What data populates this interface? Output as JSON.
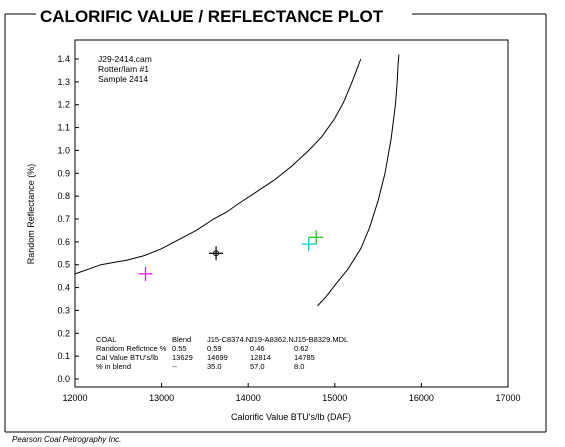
{
  "chart_data": {
    "type": "scatter",
    "title": "CALORIFIC VALUE / REFLECTANCE PLOT",
    "xlabel": "Calorific Value BTU's/lb (DAF)",
    "ylabel": "Random Reflectance (%)",
    "xlim": [
      12000,
      17000
    ],
    "ylim": [
      0.0,
      1.5
    ],
    "xticks": [
      12000,
      13000,
      14000,
      15000,
      16000,
      17000
    ],
    "yticks": [
      0.0,
      0.1,
      0.2,
      0.3,
      0.4,
      0.5,
      0.6,
      0.7,
      0.8,
      0.9,
      1.0,
      1.1,
      1.2,
      1.3,
      1.4
    ],
    "ytick_labels": [
      "0.0",
      "0.1",
      "0.2",
      "0.3",
      "0.4",
      "0.5",
      "0.6",
      "0.7",
      "0.8",
      "0.9",
      "1.0",
      "1.1",
      "1.2",
      "1.3",
      "1.4"
    ],
    "annotation_lines": [
      "J29-2414.cam",
      "Rotter/lam #1",
      "Sample 2414"
    ],
    "footer": "Pearson Coal Petrography Inc.",
    "series": [
      {
        "name": "Blend",
        "color": "#000000",
        "x": [
          13629
        ],
        "y": [
          0.55
        ]
      },
      {
        "name": "J15-C8374.N",
        "color": "#00c8c8",
        "x": [
          14699
        ],
        "y": [
          0.59
        ]
      },
      {
        "name": "J19-A8362.N",
        "color": "#e000e0",
        "x": [
          12814
        ],
        "y": [
          0.46
        ]
      },
      {
        "name": "J15-B8329.MDL",
        "color": "#00c800",
        "x": [
          14785
        ],
        "y": [
          0.62
        ]
      }
    ],
    "curves": [
      {
        "x": [
          12000,
          12150,
          12300,
          12450,
          12600,
          12800,
          13000,
          13200,
          13400,
          13600,
          13750,
          13900,
          14100,
          14300,
          14500,
          14700,
          14850,
          15000,
          15100,
          15200,
          15250,
          15300
        ],
        "y": [
          0.46,
          0.48,
          0.5,
          0.51,
          0.52,
          0.54,
          0.57,
          0.61,
          0.65,
          0.7,
          0.73,
          0.77,
          0.82,
          0.87,
          0.93,
          1.0,
          1.06,
          1.14,
          1.21,
          1.3,
          1.35,
          1.4
        ]
      },
      {
        "x": [
          14800,
          14900,
          15000,
          15150,
          15300,
          15400,
          15500,
          15580,
          15650,
          15700,
          15720,
          15730,
          15740
        ],
        "y": [
          0.32,
          0.36,
          0.41,
          0.48,
          0.57,
          0.66,
          0.78,
          0.9,
          1.05,
          1.2,
          1.3,
          1.37,
          1.42
        ]
      }
    ],
    "legend_table": {
      "header": [
        "COAL",
        "Blend",
        "J15-C8374.N",
        "J19-A8362.N",
        "J15-B8329.MDL"
      ],
      "header_colors": [
        "#000000",
        "#000000",
        "#00c8c8",
        "#e000e0",
        "#00c800"
      ],
      "rows": [
        [
          "Random Reflctnce %",
          "0.55",
          "0.59",
          "0.46",
          "0.62"
        ],
        [
          "Cal Value BTU's/lb",
          "13629",
          "14699",
          "12814",
          "14785"
        ],
        [
          "% in blend",
          "--",
          "35.0",
          "57.0",
          "8.0"
        ]
      ]
    },
    "grid": false,
    "legend_placement": "bottom-left inside plot"
  }
}
